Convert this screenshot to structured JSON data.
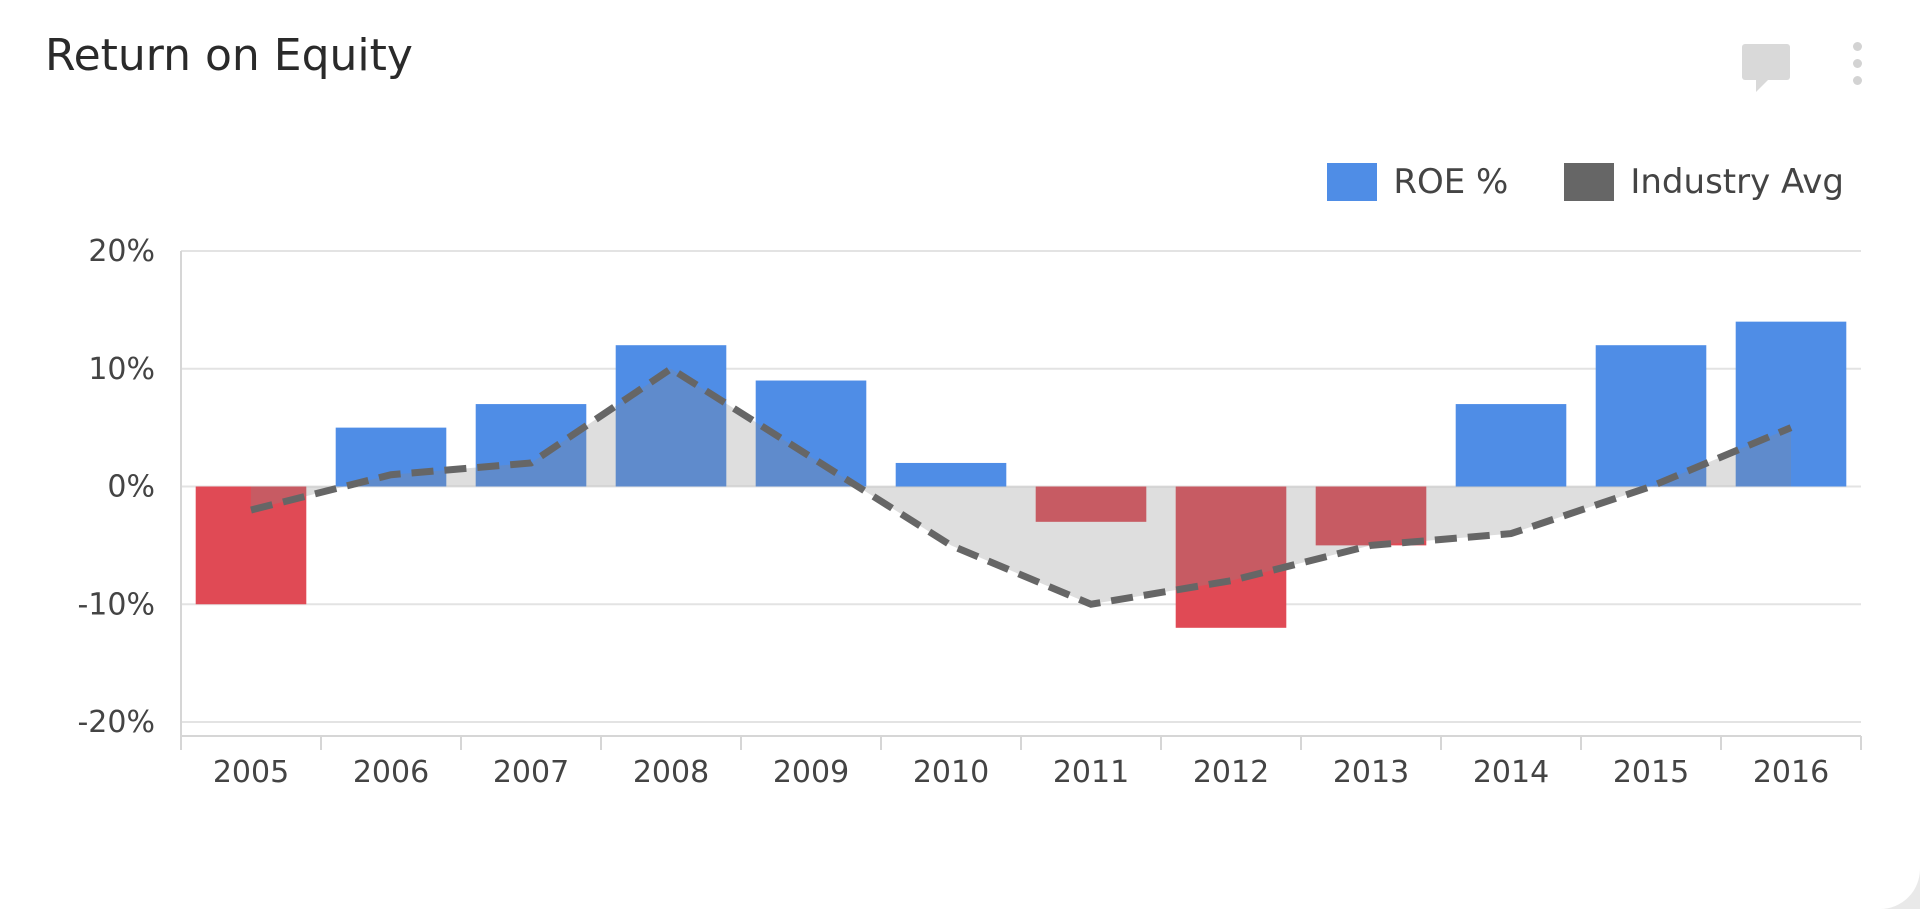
{
  "title": "Return on Equity",
  "icons": {
    "comment": "comment-icon",
    "menu": "kebab-menu-icon"
  },
  "colors": {
    "positive": "#4f8de6",
    "negative": "#e04a55",
    "industry": "#666666",
    "area": "#dcdcdc"
  },
  "chart_data": {
    "type": "bar",
    "title": "Return on Equity",
    "categories": [
      "2005",
      "2006",
      "2007",
      "2008",
      "2009",
      "2010",
      "2011",
      "2012",
      "2013",
      "2014",
      "2015",
      "2016"
    ],
    "series": [
      {
        "name": "ROE %",
        "type": "bar",
        "values": [
          -10,
          5,
          7,
          12,
          9,
          2,
          -3,
          -12,
          -5,
          7,
          12,
          14
        ]
      },
      {
        "name": "Industry Avg",
        "type": "area-line-dashed",
        "values": [
          -2,
          1,
          2,
          10,
          2.5,
          -5,
          -10,
          -8,
          -5,
          -4,
          0,
          5
        ]
      }
    ],
    "ylim": [
      -20,
      20
    ],
    "yticks": [
      "20%",
      "10%",
      "0%",
      "-10%",
      "-20%"
    ],
    "ytick_values": [
      20,
      10,
      0,
      -10,
      -20
    ],
    "grid": true,
    "legend": "top-right"
  }
}
